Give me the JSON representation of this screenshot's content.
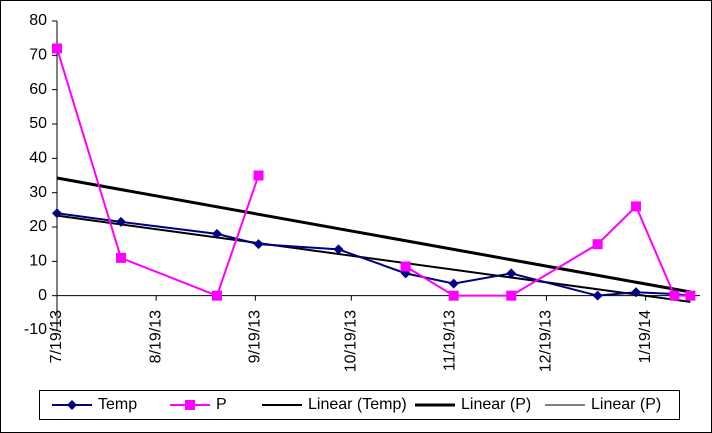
{
  "chart_data": {
    "type": "line",
    "x": [
      "2013-07-19",
      "2013-08-08",
      "2013-09-07",
      "2013-09-20",
      "2013-10-15",
      "2013-11-05",
      "2013-11-20",
      "2013-12-08",
      "2014-01-04",
      "2014-01-16",
      "2014-01-28",
      "2014-02-02"
    ],
    "series": [
      {
        "name": "Temp",
        "color": "#000080",
        "marker": "diamond",
        "values": [
          24,
          21.5,
          18,
          15,
          13.5,
          6.5,
          3.5,
          6.5,
          0,
          1,
          0.5,
          0
        ]
      },
      {
        "name": "P",
        "color": "#ff00ff",
        "marker": "square",
        "values": [
          72,
          11,
          0,
          35,
          null,
          8.5,
          0,
          0,
          15,
          26,
          0,
          0
        ]
      }
    ],
    "trendlines": [
      {
        "name": "Linear (Temp)",
        "of": "Temp",
        "color": "#000000",
        "width": 2
      },
      {
        "name": "Linear (P)",
        "of": "P",
        "color": "#000000",
        "width": 3
      },
      {
        "name": "Linear (P)",
        "of": "P",
        "color": "#000000",
        "width": 1
      }
    ],
    "xlim": [
      "2013-07-19",
      "2014-02-05"
    ],
    "xticks": [
      {
        "value": "2013-07-19",
        "label": "7/19/13"
      },
      {
        "value": "2013-08-19",
        "label": "8/19/13"
      },
      {
        "value": "2013-09-19",
        "label": "9/19/13"
      },
      {
        "value": "2013-10-19",
        "label": "10/19/13"
      },
      {
        "value": "2013-11-19",
        "label": "11/19/13"
      },
      {
        "value": "2013-12-19",
        "label": "12/19/13"
      },
      {
        "value": "2014-01-19",
        "label": "1/19/14"
      }
    ],
    "ylim": [
      -10,
      80
    ],
    "yticks": [
      -10,
      0,
      10,
      20,
      30,
      40,
      50,
      60,
      70,
      80
    ],
    "legend": "bottom"
  }
}
